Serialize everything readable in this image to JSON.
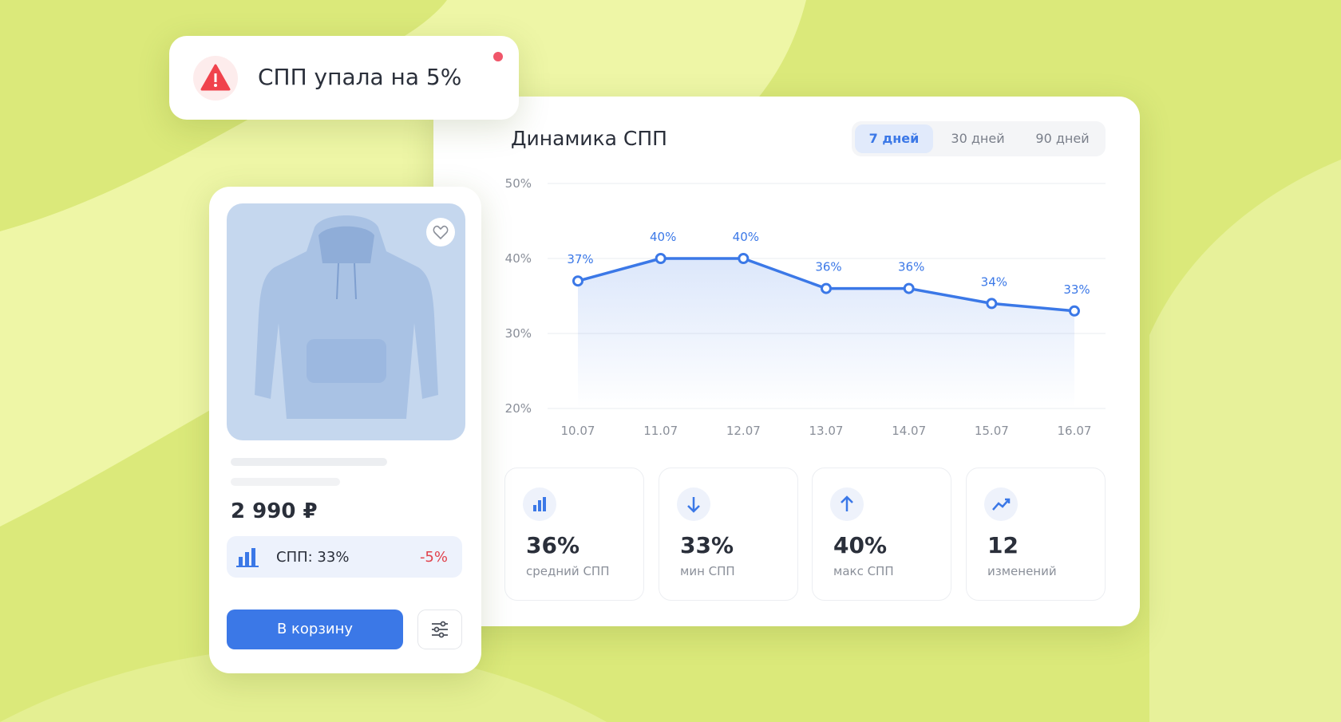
{
  "notification": {
    "text": "СПП упала на 5%"
  },
  "chart_data": {
    "type": "line",
    "title": "Динамика СПП",
    "periods": [
      "7 дней",
      "30 дней",
      "90 дней"
    ],
    "active_period": "7 дней",
    "categories": [
      "10.07",
      "11.07",
      "12.07",
      "13.07",
      "14.07",
      "15.07",
      "16.07"
    ],
    "series": [
      {
        "name": "СПП",
        "color": "#3b78e7",
        "values": [
          37,
          40,
          40,
          36,
          36,
          34,
          33
        ],
        "value_labels": [
          "37%",
          "40%",
          "40%",
          "36%",
          "36%",
          "34%",
          "33%"
        ]
      }
    ],
    "ylim": [
      20,
      50
    ],
    "yticks": [
      {
        "value": 20,
        "label": "20%"
      },
      {
        "value": 30,
        "label": "30%"
      },
      {
        "value": 40,
        "label": "40%"
      },
      {
        "value": 50,
        "label": "50%"
      }
    ],
    "grid": true,
    "area": true
  },
  "stats": [
    {
      "value": "36%",
      "label": "средний СПП"
    },
    {
      "value": "33%",
      "label": "мин СПП"
    },
    {
      "value": "40%",
      "label": "макс СПП"
    },
    {
      "value": "12",
      "label": "изменений"
    }
  ],
  "product": {
    "price": "2 990 ₽",
    "spp": "СПП: 33%",
    "change": "-5%",
    "button": "В корзину"
  }
}
